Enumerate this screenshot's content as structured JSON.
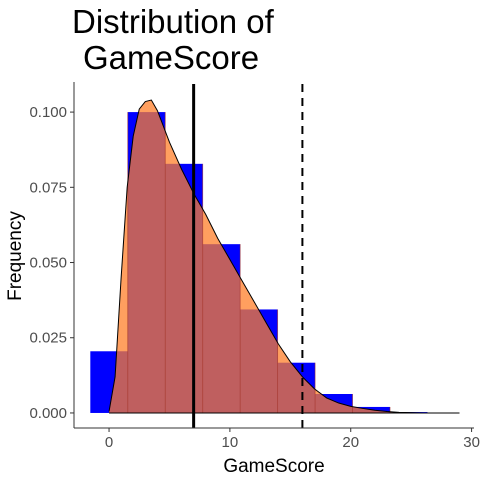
{
  "chart_data": {
    "type": "bar",
    "title_lines": [
      "Distribution of",
      "GameScore"
    ],
    "xlabel": "GameScore",
    "ylabel": "Frequency",
    "xlim": [
      -2.9,
      30.2
    ],
    "ylim": [
      -0.005,
      0.11
    ],
    "x_ticks": [
      0,
      10,
      20,
      30
    ],
    "y_ticks": [
      0.0,
      0.025,
      0.05,
      0.075,
      0.1
    ],
    "y_tick_labels": [
      "0.000",
      "0.025",
      "0.050",
      "0.075",
      "0.100"
    ],
    "histogram": {
      "bin_width": 3.1,
      "bins": [
        {
          "start": -1.55,
          "end": 1.55,
          "frequency": 0.0205
        },
        {
          "start": 1.55,
          "end": 4.65,
          "frequency": 0.1
        },
        {
          "start": 4.65,
          "end": 7.75,
          "frequency": 0.0828
        },
        {
          "start": 7.75,
          "end": 10.85,
          "frequency": 0.0561
        },
        {
          "start": 10.85,
          "end": 13.95,
          "frequency": 0.0344
        },
        {
          "start": 13.95,
          "end": 17.05,
          "frequency": 0.0167
        },
        {
          "start": 17.05,
          "end": 20.15,
          "frequency": 0.0063
        },
        {
          "start": 20.15,
          "end": 23.25,
          "frequency": 0.002
        },
        {
          "start": 23.25,
          "end": 26.35,
          "frequency": 0.0003
        }
      ],
      "fill_color": "#0000ff"
    },
    "density": {
      "x": [
        0,
        0.5,
        1,
        1.5,
        2,
        2.5,
        3,
        3.5,
        4,
        5,
        6,
        7,
        8,
        9,
        10,
        11,
        12,
        13,
        14,
        15,
        16,
        17,
        18,
        19,
        20,
        21,
        22,
        23,
        24,
        25,
        26,
        27,
        28,
        29
      ],
      "y": [
        0.0005,
        0.012,
        0.045,
        0.075,
        0.092,
        0.101,
        0.1035,
        0.104,
        0.1005,
        0.09,
        0.081,
        0.073,
        0.066,
        0.058,
        0.051,
        0.044,
        0.037,
        0.03,
        0.023,
        0.017,
        0.012,
        0.008,
        0.005,
        0.0033,
        0.0022,
        0.0015,
        0.0009,
        0.0005,
        0.0002,
        0.0001,
        0.0,
        0.0,
        0.0,
        0.0
      ],
      "fill_color": "#ff7f2a",
      "fill_opacity": 0.75,
      "line_color": "#000000"
    },
    "vlines": [
      {
        "x": 7.0,
        "style": "solid",
        "color": "#000000"
      },
      {
        "x": 16.0,
        "style": "dashed",
        "color": "#000000"
      }
    ],
    "grid": false,
    "legend": "none"
  }
}
